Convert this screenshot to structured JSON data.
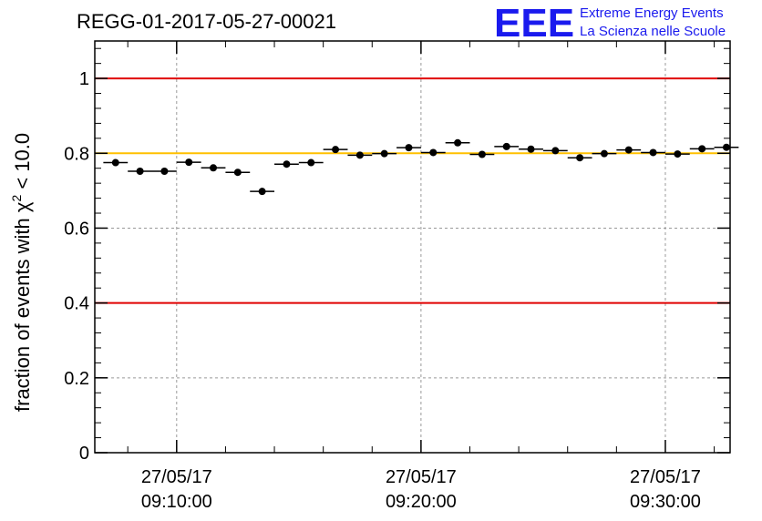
{
  "chart_data": {
    "type": "scatter",
    "title": "REGG-01-2017-05-27-00021",
    "ylabel_prefix": "fraction of events with ",
    "ylabel_symbol": "χ",
    "ylabel_sup": "2",
    "ylabel_suffix": " < 10.0",
    "xlabel": "",
    "ylim": [
      0,
      1.1
    ],
    "y_ticks": [
      "0",
      "0.2",
      "0.4",
      "0.6",
      "0.8",
      "1"
    ],
    "x_ticks": [
      {
        "date": "27/05/17",
        "time": "09:10:00",
        "minute": 10
      },
      {
        "date": "27/05/17",
        "time": "09:20:00",
        "minute": 20
      },
      {
        "date": "27/05/17",
        "time": "09:30:00",
        "minute": 30
      }
    ],
    "grid": true,
    "reference_lines": [
      {
        "y": 1.0,
        "color": "#e00000"
      },
      {
        "y": 0.8,
        "color": "#ffc000"
      },
      {
        "y": 0.4,
        "color": "#e00000"
      }
    ],
    "bin_width_min": 1,
    "x_start_min": 7,
    "points": [
      {
        "x": "09:07:30",
        "y": 0.775
      },
      {
        "x": "09:08:30",
        "y": 0.752
      },
      {
        "x": "09:09:30",
        "y": 0.752
      },
      {
        "x": "09:10:30",
        "y": 0.776
      },
      {
        "x": "09:11:30",
        "y": 0.761
      },
      {
        "x": "09:12:30",
        "y": 0.749
      },
      {
        "x": "09:13:30",
        "y": 0.698
      },
      {
        "x": "09:14:30",
        "y": 0.771
      },
      {
        "x": "09:15:30",
        "y": 0.775
      },
      {
        "x": "09:16:30",
        "y": 0.81
      },
      {
        "x": "09:17:30",
        "y": 0.795
      },
      {
        "x": "09:18:30",
        "y": 0.799
      },
      {
        "x": "09:19:30",
        "y": 0.815
      },
      {
        "x": "09:20:30",
        "y": 0.802
      },
      {
        "x": "09:21:30",
        "y": 0.828
      },
      {
        "x": "09:22:30",
        "y": 0.797
      },
      {
        "x": "09:23:30",
        "y": 0.818
      },
      {
        "x": "09:24:30",
        "y": 0.811
      },
      {
        "x": "09:25:30",
        "y": 0.807
      },
      {
        "x": "09:26:30",
        "y": 0.788
      },
      {
        "x": "09:27:30",
        "y": 0.799
      },
      {
        "x": "09:28:30",
        "y": 0.809
      },
      {
        "x": "09:29:30",
        "y": 0.802
      },
      {
        "x": "09:30:30",
        "y": 0.798
      },
      {
        "x": "09:31:30",
        "y": 0.812
      },
      {
        "x": "09:32:30",
        "y": 0.816
      }
    ]
  },
  "logo": {
    "letters": "EEE",
    "line1": "Extreme Energy Events",
    "line2": "La Scienza nelle Scuole",
    "color": "#1a1aee"
  }
}
